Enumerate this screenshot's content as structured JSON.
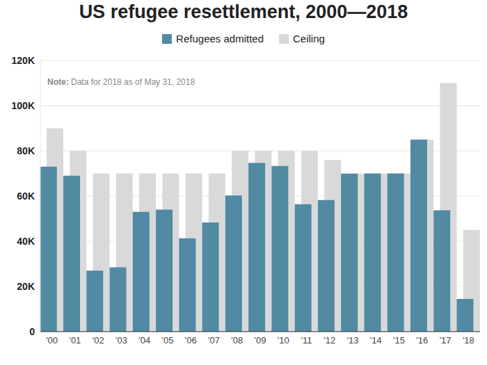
{
  "chart_data": {
    "type": "bar",
    "title": "US refugee resettlement, 2000—2018",
    "note": {
      "label": "Note:",
      "text": "Data for 2018 as of May 31, 2018"
    },
    "categories": [
      "'00",
      "'01",
      "'02",
      "'03",
      "'04",
      "'05",
      "'06",
      "'07",
      "'08",
      "'09",
      "'10",
      "'11",
      "'12",
      "'13",
      "'14",
      "'15",
      "'16",
      "'17",
      "'18"
    ],
    "series": [
      {
        "name": "Refugees admitted",
        "color": "#518aa2",
        "values": [
          73000,
          69000,
          27000,
          28500,
          53000,
          54000,
          41300,
          48300,
          60200,
          74700,
          73300,
          56400,
          58200,
          69900,
          70000,
          70000,
          85000,
          53700,
          14500
        ]
      },
      {
        "name": "Ceiling",
        "color": "#d9d9d9",
        "values": [
          90000,
          80000,
          70000,
          70000,
          70000,
          70000,
          70000,
          70000,
          80000,
          80000,
          80000,
          80000,
          76000,
          70000,
          70000,
          70000,
          85000,
          110000,
          45000
        ]
      }
    ],
    "ylim": [
      0,
      120000
    ],
    "yticks": [
      {
        "value": 0,
        "label": "0"
      },
      {
        "value": 20000,
        "label": "20K"
      },
      {
        "value": 40000,
        "label": "40K"
      },
      {
        "value": 60000,
        "label": "60K"
      },
      {
        "value": 80000,
        "label": "80K"
      },
      {
        "value": 100000,
        "label": "100K"
      },
      {
        "value": 120000,
        "label": "120K"
      }
    ],
    "grid": true,
    "legend": "top",
    "stacked": false
  }
}
